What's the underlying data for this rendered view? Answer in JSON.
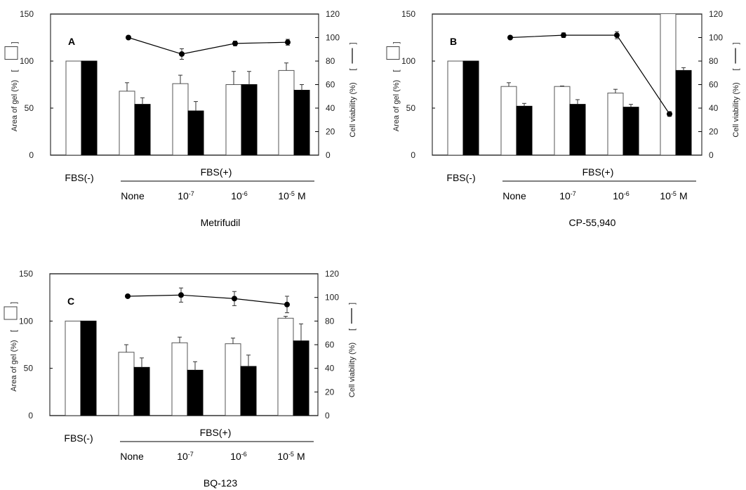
{
  "figure": {
    "left_axis_label": "Area of gel  (%)",
    "right_axis_label": "Cell viability  (%)",
    "group_label_minus": "FBS(-)",
    "group_label_plus": "FBS(+)",
    "unit": "M"
  },
  "chart_data": [
    {
      "type": "bar",
      "panel": "A",
      "title": "Metrifudil",
      "categories": [
        "FBS(-)",
        "None",
        "10-7",
        "10-6",
        "10-5"
      ],
      "category_labels": [
        {
          "base": "",
          "exp": ""
        },
        {
          "base": "None",
          "exp": ""
        },
        {
          "base": "10",
          "exp": "-7"
        },
        {
          "base": "10",
          "exp": "-6"
        },
        {
          "base": "10",
          "exp": "-5"
        }
      ],
      "ylabel": "Area of gel (%)",
      "ylim": [
        0,
        150
      ],
      "yticks": [
        0,
        50,
        100,
        150
      ],
      "y2label": "Cell viability (%)",
      "y2lim": [
        0,
        120
      ],
      "y2ticks": [
        0,
        20,
        40,
        60,
        80,
        100,
        120
      ],
      "series": [
        {
          "name": "Area of gel (open bar)",
          "kind": "bar",
          "fill": "#ffffff",
          "values": [
            100,
            68,
            76,
            75,
            90
          ],
          "errors": [
            0,
            9,
            9,
            14,
            8
          ]
        },
        {
          "name": "Area of gel (filled bar)",
          "kind": "bar",
          "fill": "#000000",
          "values": [
            100,
            54,
            47,
            75,
            69
          ],
          "errors": [
            0,
            7,
            10,
            14,
            6
          ]
        },
        {
          "name": "Cell viability",
          "kind": "line",
          "axis": "right",
          "values": [
            null,
            100,
            86,
            95,
            96
          ],
          "errors": [
            null,
            0,
            4.5,
            2,
            2.5
          ]
        }
      ]
    },
    {
      "type": "bar",
      "panel": "B",
      "title": "CP-55,940",
      "categories": [
        "FBS(-)",
        "None",
        "10-7",
        "10-6",
        "10-5"
      ],
      "category_labels": [
        {
          "base": "",
          "exp": ""
        },
        {
          "base": "None",
          "exp": ""
        },
        {
          "base": "10",
          "exp": "-7"
        },
        {
          "base": "10",
          "exp": "-6"
        },
        {
          "base": "10",
          "exp": "-5"
        }
      ],
      "ylabel": "Area of gel (%)",
      "ylim": [
        0,
        150
      ],
      "yticks": [
        0,
        50,
        100,
        150
      ],
      "y2label": "Cell viability (%)",
      "y2lim": [
        0,
        120
      ],
      "y2ticks": [
        0,
        20,
        40,
        60,
        80,
        100,
        120
      ],
      "series": [
        {
          "name": "Area of gel (open bar)",
          "kind": "bar",
          "fill": "#ffffff",
          "values": [
            100,
            73,
            73,
            66,
            160
          ],
          "errors": [
            0,
            4,
            0.5,
            4,
            0
          ]
        },
        {
          "name": "Area of gel (filled bar)",
          "kind": "bar",
          "fill": "#000000",
          "values": [
            100,
            52,
            54,
            51,
            90
          ],
          "errors": [
            0,
            3,
            5,
            3,
            3
          ]
        },
        {
          "name": "Cell viability",
          "kind": "line",
          "axis": "right",
          "values": [
            null,
            100,
            102,
            102,
            35
          ],
          "errors": [
            null,
            0,
            2,
            3,
            2
          ]
        }
      ]
    },
    {
      "type": "bar",
      "panel": "C",
      "title": "BQ-123",
      "categories": [
        "FBS(-)",
        "None",
        "10-7",
        "10-6",
        "10-5"
      ],
      "category_labels": [
        {
          "base": "",
          "exp": ""
        },
        {
          "base": "None",
          "exp": ""
        },
        {
          "base": "10",
          "exp": "-7"
        },
        {
          "base": "10",
          "exp": "-6"
        },
        {
          "base": "10",
          "exp": "-5"
        }
      ],
      "ylabel": "Area of gel (%)",
      "ylim": [
        0,
        150
      ],
      "yticks": [
        0,
        50,
        100,
        150
      ],
      "y2label": "Cell viability (%)",
      "y2lim": [
        0,
        120
      ],
      "y2ticks": [
        0,
        20,
        40,
        60,
        80,
        100,
        120
      ],
      "series": [
        {
          "name": "Area of gel (open bar)",
          "kind": "bar",
          "fill": "#ffffff",
          "values": [
            100,
            67,
            77,
            76,
            103
          ],
          "errors": [
            0,
            8,
            6,
            6,
            2
          ]
        },
        {
          "name": "Area of gel (filled bar)",
          "kind": "bar",
          "fill": "#000000",
          "values": [
            100,
            51,
            48,
            52,
            79
          ],
          "errors": [
            0,
            10,
            9,
            12,
            18
          ]
        },
        {
          "name": "Cell viability",
          "kind": "line",
          "axis": "right",
          "values": [
            null,
            101,
            102,
            99,
            94
          ],
          "errors": [
            null,
            0,
            6,
            6,
            7
          ]
        }
      ]
    }
  ]
}
